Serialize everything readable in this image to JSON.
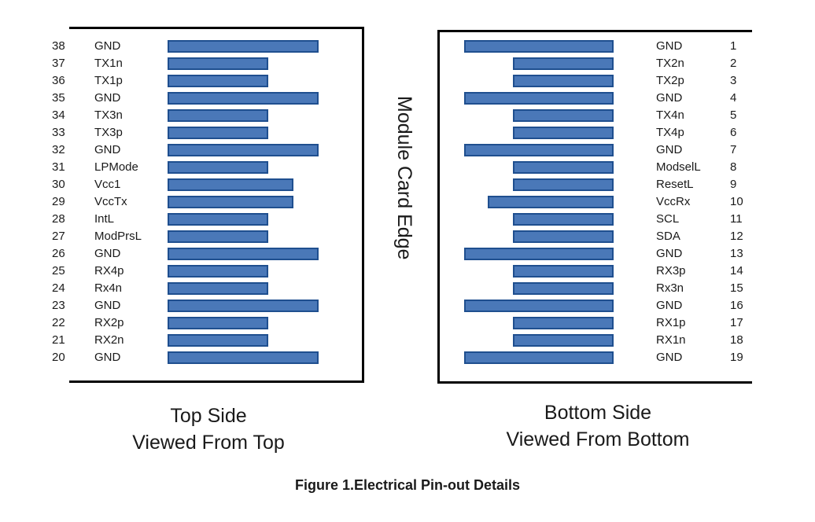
{
  "top_side": {
    "caption_line1": "Top Side",
    "caption_line2": "Viewed From Top",
    "pins": [
      {
        "num": "38",
        "name": "GND",
        "pad": "long"
      },
      {
        "num": "37",
        "name": "TX1n",
        "pad": "short"
      },
      {
        "num": "36",
        "name": "TX1p",
        "pad": "short"
      },
      {
        "num": "35",
        "name": "GND",
        "pad": "long"
      },
      {
        "num": "34",
        "name": "TX3n",
        "pad": "short"
      },
      {
        "num": "33",
        "name": "TX3p",
        "pad": "short"
      },
      {
        "num": "32",
        "name": "GND",
        "pad": "long"
      },
      {
        "num": "31",
        "name": "LPMode",
        "pad": "short"
      },
      {
        "num": "30",
        "name": "Vcc1",
        "pad": "medium"
      },
      {
        "num": "29",
        "name": "VccTx",
        "pad": "medium"
      },
      {
        "num": "28",
        "name": "IntL",
        "pad": "short"
      },
      {
        "num": "27",
        "name": "ModPrsL",
        "pad": "short"
      },
      {
        "num": "26",
        "name": "GND",
        "pad": "long"
      },
      {
        "num": "25",
        "name": "RX4p",
        "pad": "short"
      },
      {
        "num": "24",
        "name": "Rx4n",
        "pad": "short"
      },
      {
        "num": "23",
        "name": "GND",
        "pad": "long"
      },
      {
        "num": "22",
        "name": "RX2p",
        "pad": "short"
      },
      {
        "num": "21",
        "name": "RX2n",
        "pad": "short"
      },
      {
        "num": "20",
        "name": "GND",
        "pad": "long"
      }
    ]
  },
  "bottom_side": {
    "caption_line1": "Bottom Side",
    "caption_line2": "Viewed From Bottom",
    "pins": [
      {
        "num": "1",
        "name": "GND",
        "pad": "long"
      },
      {
        "num": "2",
        "name": "TX2n",
        "pad": "short"
      },
      {
        "num": "3",
        "name": "TX2p",
        "pad": "short"
      },
      {
        "num": "4",
        "name": "GND",
        "pad": "long"
      },
      {
        "num": "5",
        "name": "TX4n",
        "pad": "short"
      },
      {
        "num": "6",
        "name": "TX4p",
        "pad": "short"
      },
      {
        "num": "7",
        "name": "GND",
        "pad": "long"
      },
      {
        "num": "8",
        "name": "ModselL",
        "pad": "short"
      },
      {
        "num": "9",
        "name": "ResetL",
        "pad": "short"
      },
      {
        "num": "10",
        "name": "VccRx",
        "pad": "medium"
      },
      {
        "num": "11",
        "name": "SCL",
        "pad": "short"
      },
      {
        "num": "12",
        "name": "SDA",
        "pad": "short"
      },
      {
        "num": "13",
        "name": "GND",
        "pad": "long"
      },
      {
        "num": "14",
        "name": "RX3p",
        "pad": "short"
      },
      {
        "num": "15",
        "name": "Rx3n",
        "pad": "short"
      },
      {
        "num": "16",
        "name": "GND",
        "pad": "long"
      },
      {
        "num": "17",
        "name": "RX1p",
        "pad": "short"
      },
      {
        "num": "18",
        "name": "RX1n",
        "pad": "short"
      },
      {
        "num": "19",
        "name": "GND",
        "pad": "long"
      }
    ]
  },
  "edge_label": "Module Card Edge",
  "figure_title": "Figure 1.Electrical Pin-out Details",
  "colors": {
    "pad_fill": "#4a78b8",
    "pad_border": "#1f4f8f"
  }
}
